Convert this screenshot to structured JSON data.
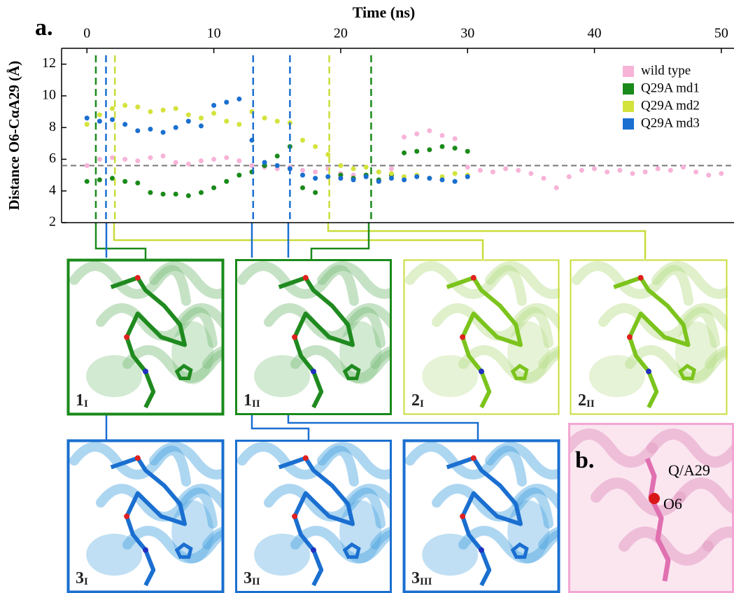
{
  "chart_data": {
    "type": "scatter",
    "xlabel": "Time (ns)",
    "ylabel": "Distance O6-CαA29 (Å)",
    "xlim": [
      -2,
      51
    ],
    "ylim": [
      2,
      13
    ],
    "xticks": [
      0,
      10,
      20,
      30,
      40,
      50
    ],
    "yticks": [
      2,
      4,
      6,
      8,
      10,
      12
    ],
    "legend": "upper right",
    "reference_y": 5.6,
    "markers": [
      {
        "x": 0.7,
        "color": "#1a8a1a"
      },
      {
        "x": 1.5,
        "color": "#1a6fd0"
      },
      {
        "x": 2.2,
        "color": "#c9dc3a"
      },
      {
        "x": 13.1,
        "color": "#1a6fd0"
      },
      {
        "x": 16.0,
        "color": "#1a6fd0"
      },
      {
        "x": 19.1,
        "color": "#c9dc3a"
      },
      {
        "x": 22.4,
        "color": "#1a8a1a"
      }
    ],
    "series": [
      {
        "name": "wild type",
        "color": "#f7b3d8",
        "x": [
          0,
          1,
          2,
          3,
          4,
          5,
          6,
          7,
          8,
          9,
          10,
          11,
          12,
          13,
          14,
          15,
          16,
          17,
          18,
          19,
          20,
          21,
          22,
          23,
          24,
          25,
          26,
          27,
          28,
          29,
          30,
          31,
          32,
          33,
          34,
          35,
          36,
          37,
          38,
          39,
          40,
          41,
          42,
          43,
          44,
          45,
          46,
          47,
          48,
          49,
          50
        ],
        "values": [
          5.6,
          6.0,
          6.1,
          6.0,
          5.9,
          6.1,
          6.2,
          5.8,
          5.7,
          5.9,
          6.0,
          6.1,
          5.9,
          5.6,
          5.5,
          5.4,
          5.5,
          5.3,
          5.2,
          5.4,
          5.1,
          5.0,
          5.0,
          5.2,
          5.4,
          7.4,
          7.6,
          7.8,
          7.5,
          7.3,
          5.5,
          5.3,
          5.2,
          5.4,
          5.3,
          5.1,
          4.8,
          4.2,
          4.9,
          5.3,
          5.4,
          5.2,
          5.3,
          5.1,
          5.2,
          5.4,
          5.3,
          5.5,
          5.2,
          5.0,
          5.1
        ]
      },
      {
        "name": "Q29A md1",
        "color": "#1a8a1a",
        "x": [
          0,
          1,
          2,
          3,
          4,
          5,
          6,
          7,
          8,
          9,
          10,
          11,
          12,
          13,
          14,
          15,
          16,
          17,
          18,
          19,
          20,
          21,
          22,
          23,
          24,
          25,
          26,
          27,
          28,
          29,
          30
        ],
        "values": [
          4.6,
          4.7,
          4.8,
          4.6,
          4.5,
          3.9,
          3.8,
          3.8,
          3.7,
          3.9,
          4.2,
          4.6,
          5.0,
          5.2,
          5.6,
          6.2,
          6.8,
          4.2,
          3.9,
          4.9,
          5.0,
          4.8,
          5.0,
          4.7,
          5.0,
          6.4,
          6.5,
          6.6,
          6.8,
          6.7,
          6.5
        ]
      },
      {
        "name": "Q29A md2",
        "color": "#d4e33c",
        "x": [
          0,
          1,
          2,
          3,
          4,
          5,
          6,
          7,
          8,
          9,
          10,
          11,
          12,
          13,
          14,
          15,
          16,
          17,
          18,
          19,
          20,
          21,
          22,
          23,
          24,
          25,
          26,
          27,
          28,
          29,
          30
        ],
        "values": [
          8.2,
          8.8,
          9.2,
          9.4,
          9.3,
          9.0,
          9.1,
          9.2,
          8.8,
          8.6,
          8.9,
          8.4,
          8.2,
          9.0,
          8.6,
          8.4,
          8.3,
          7.2,
          6.8,
          6.3,
          5.6,
          5.4,
          5.5,
          5.2,
          5.1,
          4.9,
          5.0,
          4.8,
          4.9,
          5.1,
          5.0
        ]
      },
      {
        "name": "Q29A md3",
        "color": "#1a6fd0",
        "x": [
          0,
          1,
          2,
          3,
          4,
          5,
          6,
          7,
          8,
          9,
          10,
          11,
          12,
          13,
          14,
          15,
          16,
          17,
          18,
          19,
          20,
          21,
          22,
          23,
          24,
          25,
          26,
          27,
          28,
          29,
          30
        ],
        "values": [
          8.6,
          8.4,
          8.5,
          8.2,
          7.8,
          7.9,
          7.7,
          8.0,
          8.4,
          8.1,
          9.4,
          9.6,
          9.8,
          7.2,
          5.8,
          5.6,
          5.4,
          5.0,
          4.8,
          4.9,
          4.8,
          4.7,
          4.9,
          4.6,
          4.8,
          4.7,
          4.9,
          4.8,
          4.7,
          4.6,
          4.9
        ]
      }
    ]
  },
  "figure_labels": {
    "a": "a.",
    "b": "b."
  },
  "panels": [
    {
      "label": "1",
      "sub": "I"
    },
    {
      "label": "1",
      "sub": "II"
    },
    {
      "label": "2",
      "sub": "I"
    },
    {
      "label": "2",
      "sub": "II"
    },
    {
      "label": "3",
      "sub": "I"
    },
    {
      "label": "3",
      "sub": "II"
    },
    {
      "label": "3",
      "sub": "III"
    }
  ],
  "inset": {
    "residue": "Q/A29",
    "atom": "O6"
  }
}
